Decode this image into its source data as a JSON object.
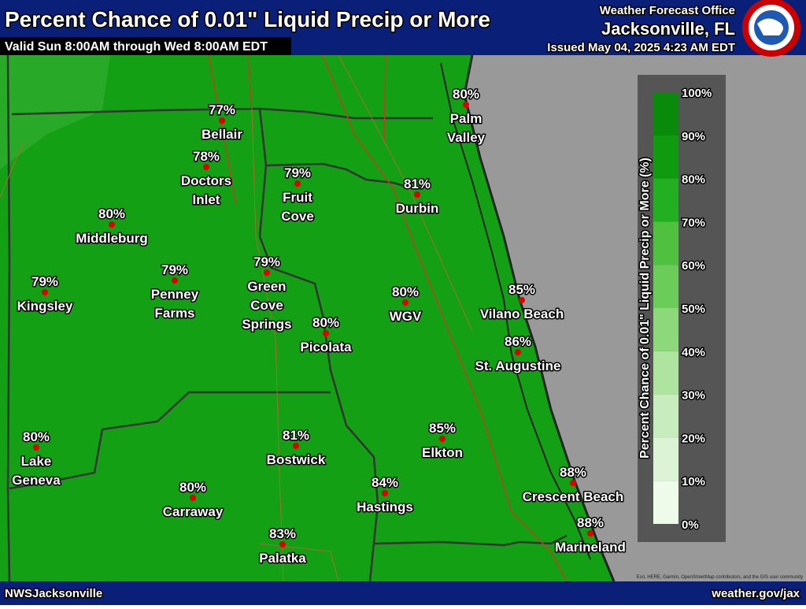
{
  "header": {
    "title": "Percent Chance of 0.01\" Liquid Precip or More",
    "subtitle": "Valid Sun 8:00AM through Wed 8:00AM EDT",
    "office": "Weather Forecast Office",
    "location": "Jacksonville, FL",
    "issued": "Issued May 04, 2025 4:23 AM EDT"
  },
  "places": [
    {
      "value": "77%",
      "name": [
        "Bellair"
      ]
    },
    {
      "value": "78%",
      "name": [
        "Doctors",
        "Inlet"
      ]
    },
    {
      "value": "79%",
      "name": [
        "Fruit",
        "Cove"
      ]
    },
    {
      "value": "81%",
      "name": [
        "Durbin"
      ]
    },
    {
      "value": "80%",
      "name": [
        "Palm",
        "Valley"
      ]
    },
    {
      "value": "80%",
      "name": [
        "Middleburg"
      ]
    },
    {
      "value": "79%",
      "name": [
        "Kingsley"
      ]
    },
    {
      "value": "79%",
      "name": [
        "Penney",
        "Farms"
      ]
    },
    {
      "value": "79%",
      "name": [
        "Green",
        "Cove",
        "Springs"
      ]
    },
    {
      "value": "80%",
      "name": [
        "Picolata"
      ]
    },
    {
      "value": "80%",
      "name": [
        "WGV"
      ]
    },
    {
      "value": "85%",
      "name": [
        "Vilano Beach"
      ]
    },
    {
      "value": "86%",
      "name": [
        "St. Augustine"
      ]
    },
    {
      "value": "80%",
      "name": [
        "Lake",
        "Geneva"
      ]
    },
    {
      "value": "81%",
      "name": [
        "Bostwick"
      ]
    },
    {
      "value": "85%",
      "name": [
        "Elkton"
      ]
    },
    {
      "value": "84%",
      "name": [
        "Hastings"
      ]
    },
    {
      "value": "80%",
      "name": [
        "Carraway"
      ]
    },
    {
      "value": "83%",
      "name": [
        "Palatka"
      ]
    },
    {
      "value": "88%",
      "name": [
        "Crescent Beach"
      ]
    },
    {
      "value": "88%",
      "name": [
        "Marineland"
      ]
    }
  ],
  "legend": {
    "title": "Percent Chance of 0.01\" Liquid Precip or More (%)",
    "ticks": [
      "100%",
      "90%",
      "80%",
      "70%",
      "60%",
      "50%",
      "40%",
      "30%",
      "20%",
      "10%",
      "0%"
    ]
  },
  "footer": {
    "left": "NWSJacksonville",
    "right": "weather.gov/jax",
    "attribution": "Esri, HERE, Garmin, OpenStreetMap contributors, and the GIS user community"
  }
}
